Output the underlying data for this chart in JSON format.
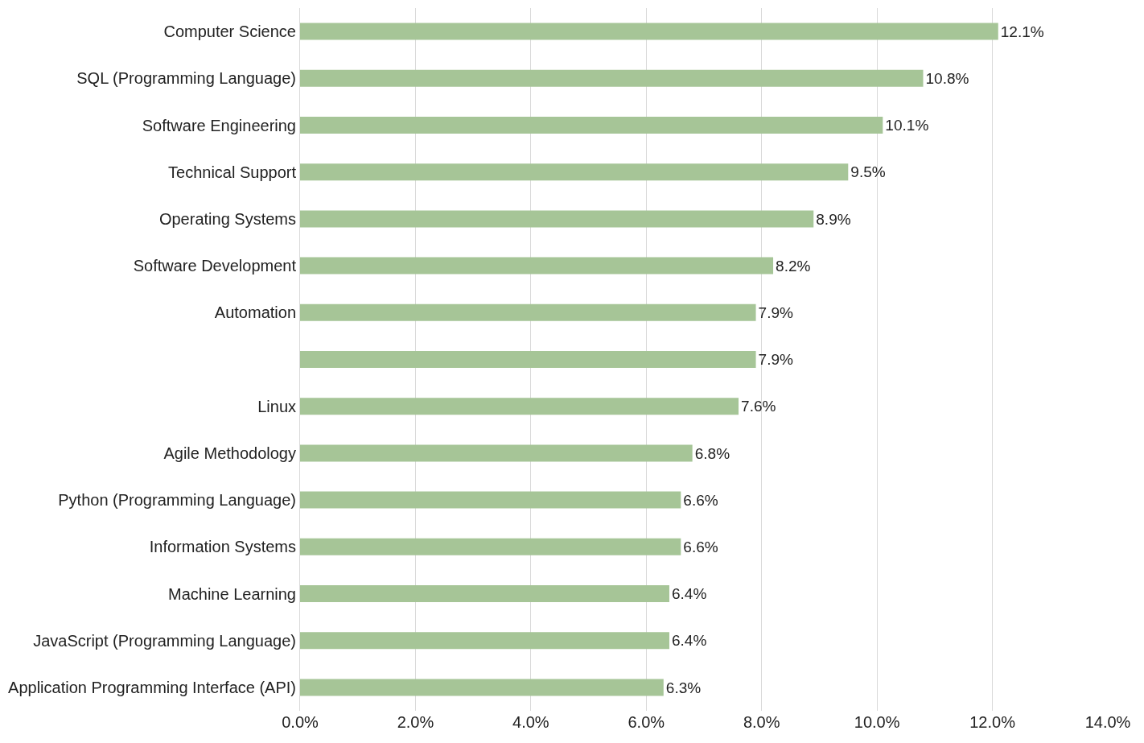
{
  "chart_data": {
    "type": "bar",
    "orientation": "horizontal",
    "categories": [
      "Computer Science",
      "SQL (Programming Language)",
      "Software Engineering",
      "Technical Support",
      "Operating Systems",
      "Software Development",
      "Automation",
      null,
      "Linux",
      "Agile Methodology",
      "Python (Programming Language)",
      "Information Systems",
      "Machine Learning",
      "JavaScript (Programming Language)",
      "Application Programming Interface (API)"
    ],
    "values": [
      12.1,
      10.8,
      10.1,
      9.5,
      8.9,
      8.2,
      7.9,
      7.9,
      7.6,
      6.8,
      6.6,
      6.6,
      6.4,
      6.4,
      6.3
    ],
    "value_labels": [
      "12.1%",
      "10.8%",
      "10.1%",
      "9.5%",
      "8.9%",
      "8.2%",
      "7.9%",
      "7.9%",
      "7.6%",
      "6.8%",
      "6.6%",
      "6.6%",
      "6.4%",
      "6.4%",
      "6.3%"
    ],
    "color": "#a6c597",
    "xlim": [
      0,
      14
    ],
    "xticks": [
      {
        "value": 0,
        "label": "0.0%"
      },
      {
        "value": 2,
        "label": "2.0%"
      },
      {
        "value": 4,
        "label": "4.0%"
      },
      {
        "value": 6,
        "label": "6.0%"
      },
      {
        "value": 8,
        "label": "8.0%"
      },
      {
        "value": 10,
        "label": "10.0%"
      },
      {
        "value": 12,
        "label": "12.0%"
      },
      {
        "value": 14,
        "label": "14.0%"
      }
    ],
    "grid": "x",
    "legend": false
  }
}
